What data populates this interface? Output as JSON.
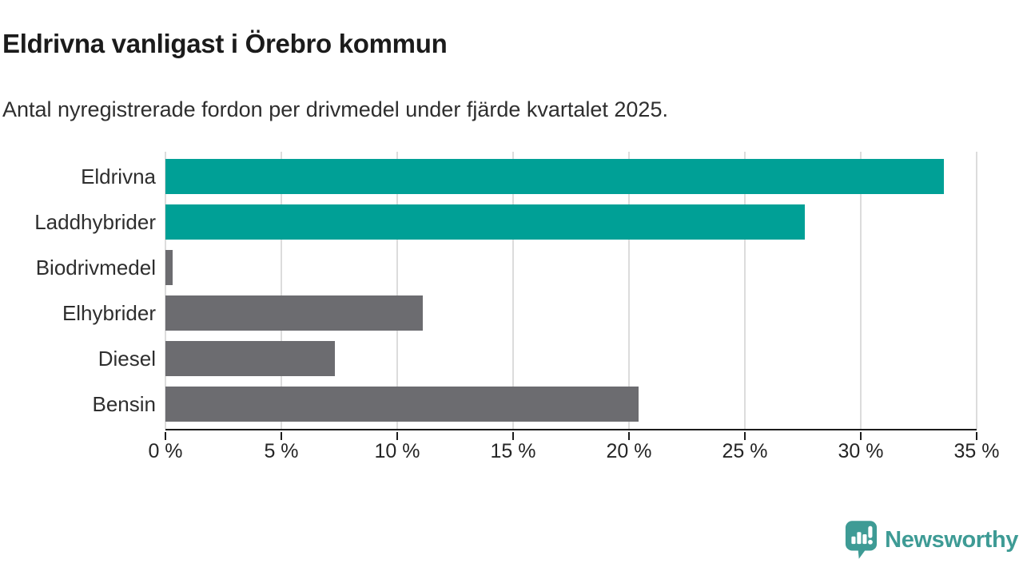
{
  "header": {
    "title": "Eldrivna vanligast i Örebro kommun",
    "subtitle": "Antal nyregistrerade fordon per drivmedel under fjärde kvartalet 2025."
  },
  "chart_data": {
    "type": "bar",
    "orientation": "horizontal",
    "title": "Eldrivna vanligast i Örebro kommun",
    "subtitle": "Antal nyregistrerade fordon per drivmedel under fjärde kvartalet 2025.",
    "categories": [
      "Eldrivna",
      "Laddhybrider",
      "Biodrivmedel",
      "Elhybrider",
      "Diesel",
      "Bensin"
    ],
    "values": [
      33.6,
      27.6,
      0.3,
      11.1,
      7.3,
      20.4
    ],
    "unit": "%",
    "bar_colors": [
      "#00a096",
      "#00a096",
      "#6c6c70",
      "#6c6c70",
      "#6c6c70",
      "#6c6c70"
    ],
    "xlabel": "",
    "ylabel": "",
    "xlim": [
      0,
      35
    ],
    "x_ticks": [
      0,
      5,
      10,
      15,
      20,
      25,
      30,
      35
    ],
    "x_tick_labels": [
      "0 %",
      "5 %",
      "10 %",
      "15 %",
      "20 %",
      "25 %",
      "30 %",
      "35 %"
    ],
    "grid": "vertical",
    "legend": "none"
  },
  "colors": {
    "accent_teal": "#00a096",
    "neutral_gray": "#6c6c70",
    "gridline": "#dcdcdc",
    "axis": "#1c1c1c",
    "brand": "#3e9b95"
  },
  "footer": {
    "logo_text": "Newsworthy",
    "logo_icon": "newsworthy-speech-bubble-bar-chart-icon"
  }
}
